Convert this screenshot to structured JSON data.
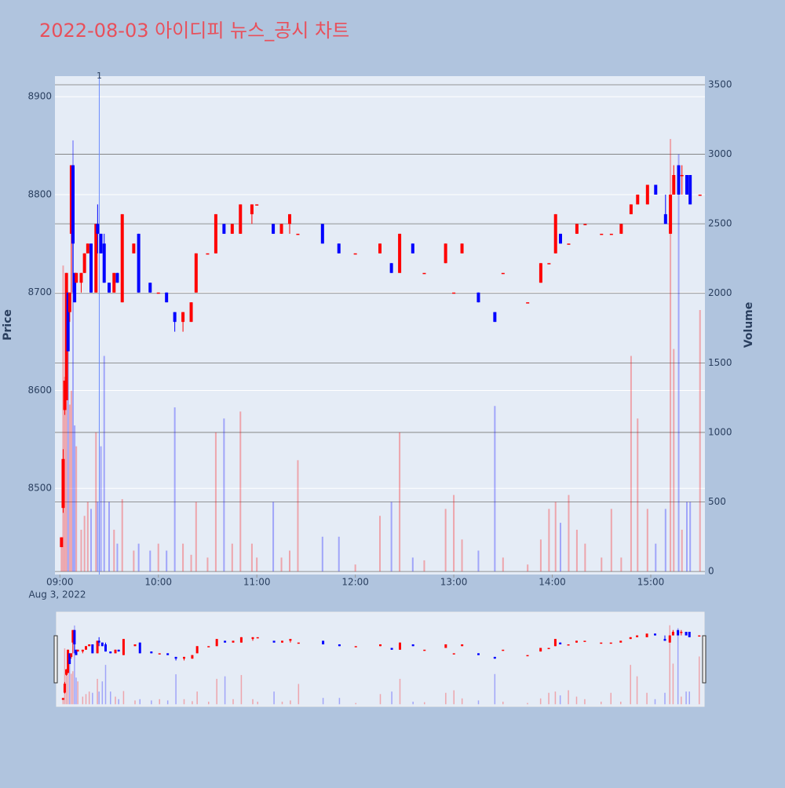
{
  "chart_data": {
    "type": "candlestick",
    "title": "2022-08-03 아이디피 뉴스_공시 차트",
    "ylabel": "Price",
    "y2label": "Volume",
    "x_sublabel": "Aug 3, 2022",
    "annotation": {
      "x": "09:24",
      "text": "1"
    },
    "increasing_color": "#ff0000",
    "decreasing_color": "#0000ff",
    "xlim": [
      "08:57",
      "15:33"
    ],
    "xticks": [
      "09:00",
      "10:00",
      "11:00",
      "12:00",
      "13:00",
      "14:00",
      "15:00"
    ],
    "ylim": [
      8412,
      8921
    ],
    "yticks": [
      8500,
      8600,
      8700,
      8800,
      8900
    ],
    "y2lim": [
      -22,
      3562
    ],
    "y2ticks": [
      0,
      500,
      1000,
      1500,
      2000,
      2500,
      3000,
      3500
    ],
    "x": [
      "09:01",
      "09:02",
      "09:03",
      "09:04",
      "09:05",
      "09:06",
      "09:07",
      "09:08",
      "09:09",
      "09:10",
      "09:13",
      "09:15",
      "09:17",
      "09:19",
      "09:22",
      "09:23",
      "09:25",
      "09:27",
      "09:30",
      "09:33",
      "09:35",
      "09:38",
      "09:45",
      "09:48",
      "09:55",
      "10:00",
      "10:05",
      "10:10",
      "10:15",
      "10:20",
      "10:23",
      "10:30",
      "10:35",
      "10:40",
      "10:45",
      "10:50",
      "10:57",
      "11:00",
      "11:10",
      "11:15",
      "11:20",
      "11:25",
      "11:40",
      "11:50",
      "12:00",
      "12:15",
      "12:22",
      "12:27",
      "12:35",
      "12:42",
      "12:55",
      "13:00",
      "13:05",
      "13:15",
      "13:25",
      "13:30",
      "13:45",
      "13:53",
      "13:58",
      "14:02",
      "14:05",
      "14:10",
      "14:15",
      "14:20",
      "14:30",
      "14:36",
      "14:42",
      "14:48",
      "14:52",
      "14:58",
      "15:03",
      "15:09",
      "15:12",
      "15:14",
      "15:17",
      "15:19",
      "15:22",
      "15:24",
      "15:30"
    ],
    "open": [
      8440,
      8480,
      8580,
      8590,
      8700,
      8680,
      8760,
      8830,
      8720,
      8710,
      8710,
      8720,
      8740,
      8750,
      8700,
      8770,
      8760,
      8750,
      8710,
      8700,
      8720,
      8690,
      8740,
      8760,
      8710,
      8700,
      8700,
      8680,
      8670,
      8670,
      8700,
      8740,
      8740,
      8770,
      8760,
      8760,
      8780,
      8790,
      8770,
      8760,
      8770,
      8760,
      8770,
      8750,
      8740,
      8740,
      8730,
      8720,
      8750,
      8720,
      8730,
      8700,
      8740,
      8700,
      8680,
      8720,
      8690,
      8710,
      8730,
      8740,
      8760,
      8750,
      8760,
      8770,
      8760,
      8760,
      8760,
      8780,
      8790,
      8790,
      8810,
      8780,
      8760,
      8800,
      8830,
      8820,
      8820,
      8820,
      8800
    ],
    "high": [
      8450,
      8540,
      8610,
      8720,
      8700,
      8700,
      8830,
      8830,
      8720,
      8720,
      8720,
      8740,
      8750,
      8750,
      8770,
      8790,
      8760,
      8760,
      8710,
      8720,
      8720,
      8780,
      8750,
      8760,
      8710,
      8700,
      8700,
      8680,
      8680,
      8690,
      8740,
      8740,
      8780,
      8770,
      8770,
      8790,
      8790,
      8790,
      8770,
      8770,
      8780,
      8760,
      8770,
      8750,
      8740,
      8750,
      8730,
      8760,
      8750,
      8720,
      8750,
      8700,
      8750,
      8700,
      8680,
      8720,
      8690,
      8730,
      8730,
      8780,
      8760,
      8750,
      8770,
      8770,
      8760,
      8760,
      8770,
      8790,
      8800,
      8810,
      8810,
      8800,
      8800,
      8830,
      8830,
      8830,
      8820,
      8820,
      8800
    ],
    "low": [
      8440,
      8475,
      8575,
      8590,
      8640,
      8670,
      8700,
      8700,
      8690,
      8710,
      8700,
      8720,
      8740,
      8700,
      8700,
      8740,
      8740,
      8710,
      8700,
      8700,
      8710,
      8690,
      8740,
      8700,
      8700,
      8700,
      8690,
      8660,
      8660,
      8670,
      8700,
      8740,
      8740,
      8760,
      8760,
      8760,
      8770,
      8790,
      8760,
      8760,
      8760,
      8760,
      8750,
      8740,
      8740,
      8740,
      8720,
      8720,
      8740,
      8720,
      8730,
      8700,
      8740,
      8690,
      8670,
      8720,
      8690,
      8710,
      8730,
      8740,
      8750,
      8750,
      8760,
      8770,
      8760,
      8760,
      8760,
      8780,
      8790,
      8790,
      8800,
      8770,
      8760,
      8800,
      8800,
      8800,
      8800,
      8790,
      8800
    ],
    "close": [
      8450,
      8530,
      8610,
      8720,
      8640,
      8700,
      8830,
      8750,
      8690,
      8720,
      8720,
      8740,
      8750,
      8700,
      8770,
      8760,
      8740,
      8710,
      8700,
      8720,
      8710,
      8780,
      8750,
      8700,
      8700,
      8700,
      8690,
      8670,
      8680,
      8690,
      8740,
      8740,
      8780,
      8760,
      8770,
      8790,
      8790,
      8790,
      8760,
      8770,
      8780,
      8760,
      8750,
      8740,
      8740,
      8750,
      8720,
      8760,
      8740,
      8720,
      8750,
      8700,
      8750,
      8690,
      8670,
      8720,
      8690,
      8730,
      8730,
      8780,
      8750,
      8750,
      8770,
      8770,
      8760,
      8760,
      8770,
      8790,
      8800,
      8810,
      8800,
      8770,
      8800,
      8820,
      8800,
      8820,
      8800,
      8790,
      8800
    ],
    "volume": [
      200,
      2200,
      1400,
      2000,
      1800,
      1200,
      1300,
      3100,
      1050,
      900,
      300,
      400,
      500,
      450,
      1000,
      500,
      900,
      1550,
      500,
      300,
      200,
      520,
      150,
      200,
      150,
      200,
      150,
      1180,
      200,
      120,
      500,
      100,
      1000,
      1100,
      200,
      1150,
      200,
      100,
      500,
      100,
      150,
      800,
      250,
      250,
      50,
      400,
      500,
      1000,
      100,
      80,
      450,
      550,
      230,
      150,
      1190,
      100,
      50,
      230,
      450,
      500,
      350,
      550,
      300,
      200,
      100,
      450,
      100,
      1550,
      1100,
      450,
      200,
      450,
      3110,
      1600,
      3000,
      300,
      500,
      500,
      1880
    ]
  }
}
